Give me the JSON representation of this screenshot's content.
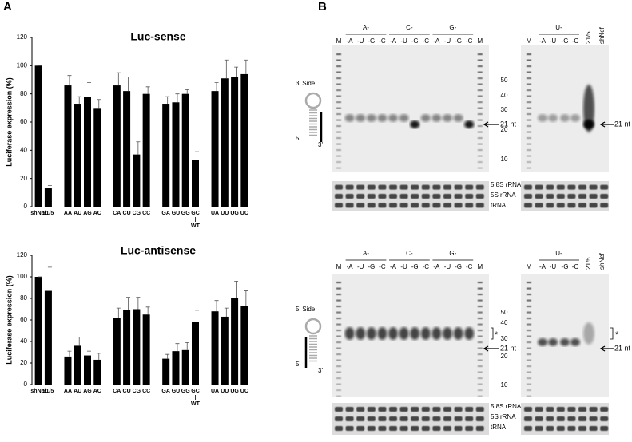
{
  "panel_labels": [
    "A",
    "B"
  ],
  "chart_data": [
    {
      "type": "bar",
      "title": "Luc-sense",
      "ylabel": "Luciferase expression (%)",
      "categories": [
        "shNef",
        "21/5",
        null,
        "AA",
        "AU",
        "AG",
        "AC",
        null,
        "CA",
        "CU",
        "CG",
        "CC",
        null,
        "GA",
        "GU",
        "GG",
        "GC",
        null,
        "UA",
        "UU",
        "UG",
        "UC"
      ],
      "values": [
        100,
        13,
        null,
        86,
        73,
        78,
        70,
        null,
        86,
        82,
        37,
        80,
        null,
        73,
        74,
        80,
        33,
        null,
        82,
        91,
        92,
        94
      ],
      "errors": [
        0,
        2,
        null,
        7,
        5,
        10,
        6,
        null,
        9,
        10,
        9,
        5,
        null,
        5,
        6,
        3,
        6,
        null,
        6,
        13,
        7,
        10
      ],
      "annotation": "WT",
      "color": "#000000",
      "ylim": [
        0,
        120
      ],
      "yticks": [
        0,
        20,
        40,
        60,
        80,
        100,
        120
      ]
    },
    {
      "type": "bar",
      "title": "Luc-antisense",
      "ylabel": "Luciferase expression (%)",
      "categories": [
        "shNef",
        "21/5",
        null,
        "AA",
        "AU",
        "AG",
        "AC",
        null,
        "CA",
        "CU",
        "CG",
        "CC",
        null,
        "GA",
        "GU",
        "GG",
        "GC",
        null,
        "UA",
        "UU",
        "UG",
        "UC"
      ],
      "values": [
        100,
        87,
        null,
        26,
        36,
        27,
        23,
        null,
        62,
        69,
        70,
        65,
        null,
        24,
        31,
        32,
        58,
        null,
        68,
        63,
        80,
        73
      ],
      "errors": [
        0,
        22,
        null,
        5,
        8,
        4,
        6,
        null,
        9,
        12,
        11,
        7,
        null,
        4,
        7,
        7,
        11,
        null,
        10,
        8,
        16,
        14
      ],
      "annotation": "WT",
      "color": "#000000",
      "ylim": [
        0,
        120
      ],
      "yticks": [
        0,
        20,
        40,
        60,
        80,
        100,
        120
      ]
    }
  ],
  "gels": [
    {
      "side_label": "3' Side",
      "strand_ends": [
        "5'",
        "3'"
      ],
      "left_groups": [
        "A-",
        "C-",
        "G-"
      ],
      "left_lanes": [
        "M",
        "-A",
        "-U",
        "-G",
        "-C",
        "-A",
        "-U",
        "-G",
        "-C",
        "-A",
        "-U",
        "-G",
        "-C",
        "M"
      ],
      "right_group": "U-",
      "right_lanes": [
        "M",
        "-A",
        "-U",
        "-G",
        "-C",
        "21/5",
        "shNef"
      ],
      "size_markers": [
        50,
        40,
        30,
        20,
        10
      ],
      "arrow_labels": [
        "21 nt",
        "21 nt"
      ],
      "rna_labels": [
        "5.8S rRNA",
        "5S rRNA",
        "tRNA"
      ]
    },
    {
      "side_label": "5' Side",
      "strand_ends": [
        "5'",
        "3'"
      ],
      "left_groups": [
        "A-",
        "C-",
        "G-"
      ],
      "left_lanes": [
        "M",
        "-A",
        "-U",
        "-G",
        "-C",
        "-A",
        "-U",
        "-G",
        "-C",
        "-A",
        "-U",
        "-G",
        "-C",
        "M"
      ],
      "right_group": "U-",
      "right_lanes": [
        "M",
        "-A",
        "-U",
        "-G",
        "-C",
        "21/5",
        "shNef"
      ],
      "size_markers": [
        50,
        40,
        30,
        20,
        10
      ],
      "arrow_labels": [
        "21 nt",
        "21 nt"
      ],
      "stars": [
        "*",
        "*"
      ],
      "rna_labels": [
        "5.8S rRNA",
        "5S rRNA",
        "tRNA"
      ]
    }
  ]
}
